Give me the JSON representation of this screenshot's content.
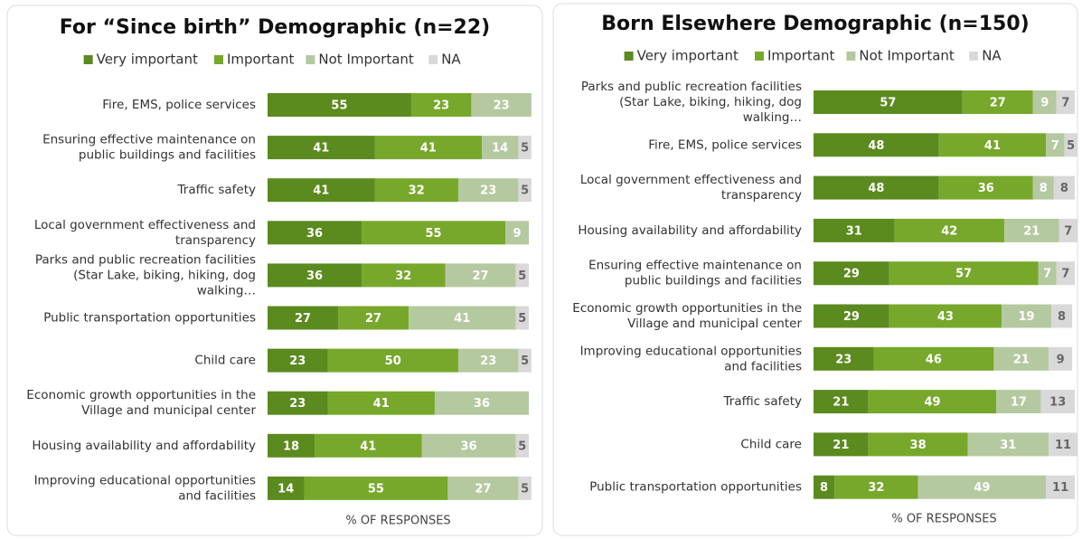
{
  "chart_data": [
    {
      "type": "stacked-bar",
      "orientation": "horizontal",
      "title": "For “Since birth” Demographic (n=22)",
      "xlabel": "% OF RESPONSES",
      "categories": [
        "Fire, EMS, police services",
        "Ensuring effective maintenance on public buildings and facilities",
        "Traffic safety",
        "Local government effectiveness and transparency",
        "Parks and public recreation facilities (Star Lake, biking, hiking, dog walking…",
        "Public transportation opportunities",
        "Child care",
        "Economic growth opportunities in the Village and municipal center",
        "Housing availability and affordability",
        "Improving educational opportunities and facilities"
      ],
      "series": [
        {
          "name": "Very important",
          "color": "#5b8a1f",
          "values": [
            55,
            41,
            41,
            36,
            36,
            27,
            23,
            23,
            18,
            14
          ]
        },
        {
          "name": "Important",
          "color": "#77a82b",
          "values": [
            23,
            41,
            32,
            55,
            32,
            27,
            50,
            41,
            41,
            55
          ]
        },
        {
          "name": "Not Important",
          "color": "#b5c9a0",
          "values": [
            23,
            14,
            23,
            9,
            27,
            41,
            23,
            36,
            36,
            27
          ]
        },
        {
          "name": "NA",
          "color": "#d9d9d9",
          "values": [
            null,
            5,
            5,
            null,
            5,
            5,
            5,
            null,
            5,
            5
          ]
        }
      ],
      "xlim": [
        0,
        100
      ]
    },
    {
      "type": "stacked-bar",
      "orientation": "horizontal",
      "title": "Born Elsewhere Demographic (n=150)",
      "xlabel": "% OF RESPONSES",
      "categories": [
        "Parks and public recreation facilities (Star Lake, biking, hiking, dog walking…",
        "Fire, EMS, police services",
        "Local government effectiveness and transparency",
        "Housing availability and affordability",
        "Ensuring effective maintenance on public buildings and facilities",
        "Economic growth opportunities in the Village and municipal center",
        "Improving educational opportunities and facilities",
        "Traffic safety",
        "Child care",
        "Public transportation opportunities"
      ],
      "series": [
        {
          "name": "Very important",
          "color": "#5b8a1f",
          "values": [
            57,
            48,
            48,
            31,
            29,
            29,
            23,
            21,
            21,
            8
          ]
        },
        {
          "name": "Important",
          "color": "#77a82b",
          "values": [
            27,
            41,
            36,
            42,
            57,
            43,
            46,
            49,
            38,
            32
          ]
        },
        {
          "name": "Not Important",
          "color": "#b5c9a0",
          "values": [
            9,
            7,
            8,
            21,
            7,
            19,
            21,
            17,
            31,
            49
          ]
        },
        {
          "name": "NA",
          "color": "#d9d9d9",
          "values": [
            7,
            5,
            8,
            7,
            7,
            8,
            9,
            13,
            11,
            11
          ]
        }
      ],
      "xlim": [
        0,
        100
      ]
    }
  ]
}
